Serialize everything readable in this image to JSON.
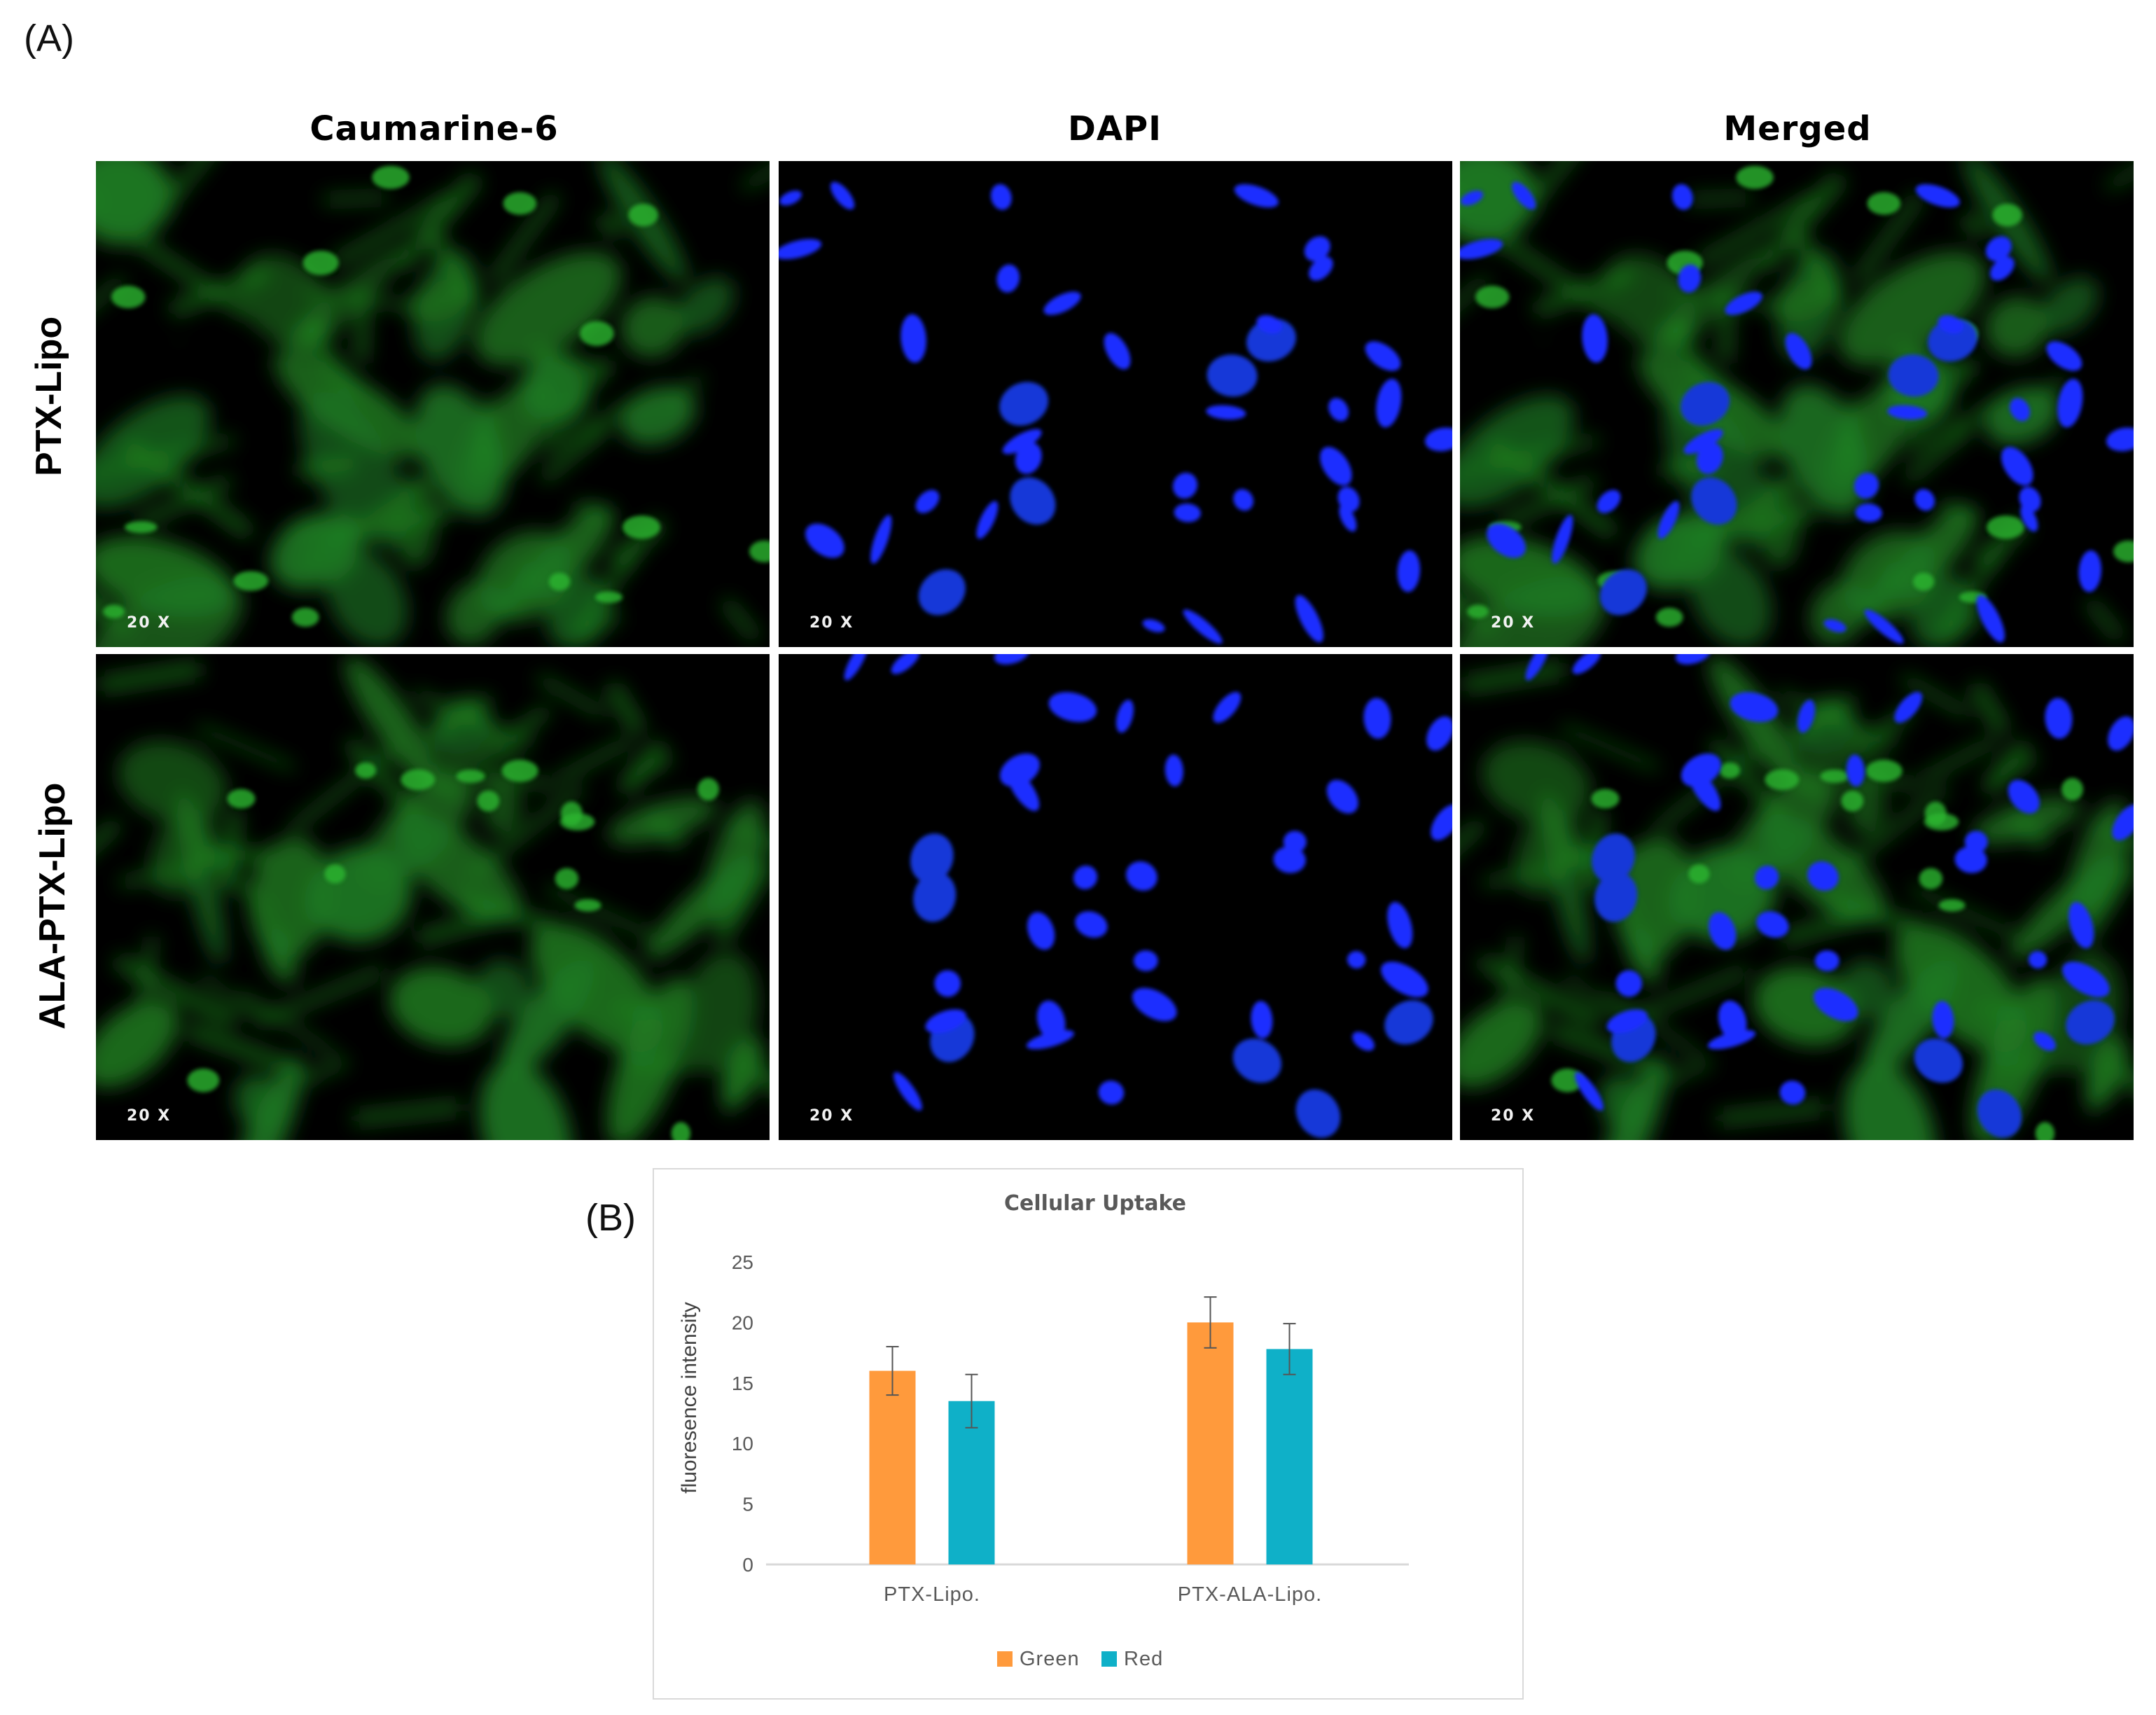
{
  "figure": {
    "panel_a_label": "(A)",
    "panel_b_label": "(B)",
    "columns": [
      "Caumarine-6",
      "DAPI",
      "Merged"
    ],
    "rows": [
      "PTX-Lipo",
      "ALA-PTX-Lipo"
    ],
    "magnification": "20 X",
    "channel_colors": {
      "green": "#1fa82a",
      "blue": "#1a2dff"
    }
  },
  "chart_data": {
    "type": "bar",
    "title": "Cellular Uptake",
    "xlabel": "",
    "ylabel": "fluoresence intensity",
    "ylim": [
      0,
      25
    ],
    "yticks": [
      0,
      5,
      10,
      15,
      20,
      25
    ],
    "categories": [
      "PTX-Lipo.",
      "PTX-ALA-Lipo."
    ],
    "series": [
      {
        "name": "Green",
        "color": "#ff9a3c",
        "values": [
          16.0,
          20.0
        ],
        "errors": [
          2.0,
          2.1
        ]
      },
      {
        "name": "Red",
        "color": "#0fb0c8",
        "values": [
          13.5,
          17.8
        ],
        "errors": [
          2.2,
          2.1
        ]
      }
    ],
    "grid": false,
    "legend": "bottom"
  }
}
